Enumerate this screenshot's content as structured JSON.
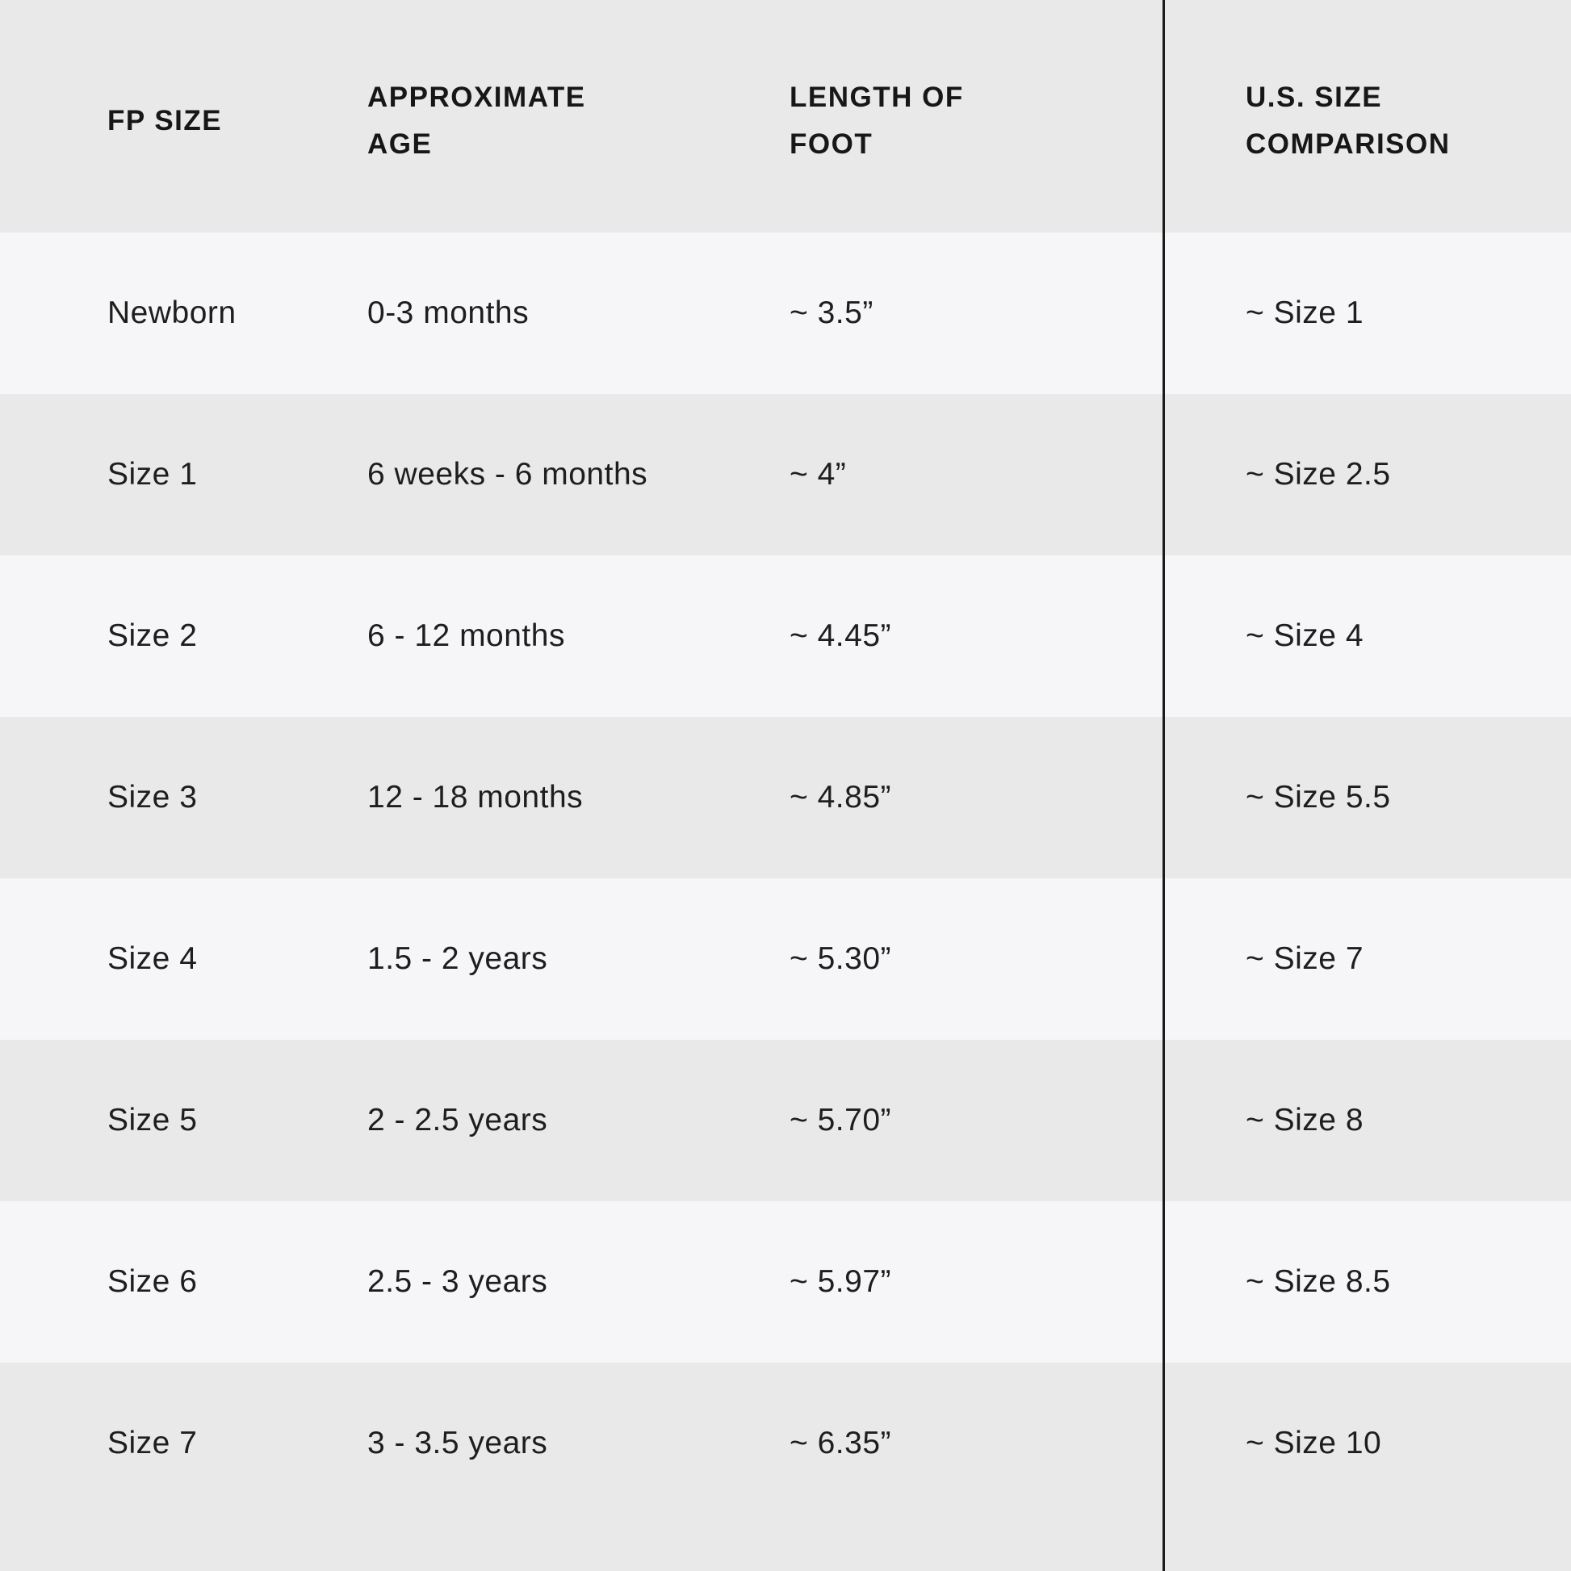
{
  "chart_data": {
    "type": "table",
    "columns": [
      "FP SIZE",
      "APPROXIMATE AGE",
      "LENGTH OF FOOT",
      "U.S. SIZE COMPARISON"
    ],
    "rows": [
      [
        "Newborn",
        "0-3 months",
        "~ 3.5”",
        "~ Size 1"
      ],
      [
        "Size 1",
        "6 weeks - 6 months",
        "~ 4”",
        "~ Size 2.5"
      ],
      [
        "Size 2",
        "6 - 12 months",
        "~ 4.45”",
        "~ Size 4"
      ],
      [
        "Size 3",
        "12 - 18 months",
        "~ 4.85”",
        "~ Size 5.5"
      ],
      [
        "Size 4",
        "1.5 - 2 years",
        "~ 5.30”",
        "~ Size 7"
      ],
      [
        "Size 5",
        "2 - 2.5 years",
        "~ 5.70”",
        "~ Size 8"
      ],
      [
        "Size 6",
        "2.5 - 3 years",
        "~ 5.97”",
        "~ Size 8.5"
      ],
      [
        "Size 7",
        "3 - 3.5 years",
        "~ 6.35”",
        "~ Size 10"
      ]
    ],
    "layout": {
      "header_background": "#e9e9e9",
      "row_light_background": "#f6f6f8",
      "row_dark_background": "#e9e9e9",
      "divider_color": "#1b1b1b",
      "text_color": "#1e1e1e"
    }
  }
}
